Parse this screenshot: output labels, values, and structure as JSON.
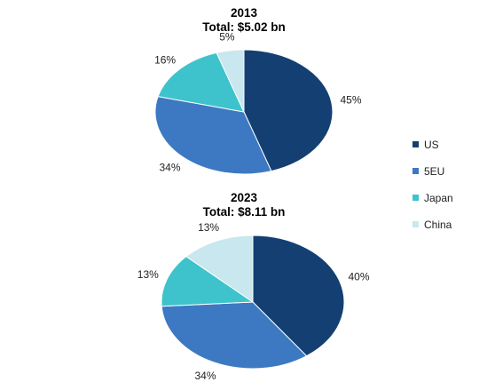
{
  "chart_data": [
    {
      "type": "pie",
      "title": "2013",
      "subtitle": "Total: $5.02 bn",
      "categories": [
        "US",
        "5EU",
        "Japan",
        "China"
      ],
      "values": [
        45,
        34,
        16,
        5
      ],
      "labels": [
        "45%",
        "34%",
        "16%",
        "5%"
      ]
    },
    {
      "type": "pie",
      "title": "2023",
      "subtitle": "Total: $8.11 bn",
      "categories": [
        "US",
        "5EU",
        "Japan",
        "China"
      ],
      "values": [
        40,
        34,
        13,
        13
      ],
      "labels": [
        "40%",
        "34%",
        "13%",
        "13%"
      ]
    }
  ],
  "legend": {
    "placement": "right",
    "items": [
      {
        "label": "US",
        "color": "#143f72"
      },
      {
        "label": "5EU",
        "color": "#3c79c2"
      },
      {
        "label": "Japan",
        "color": "#3ec3cd"
      },
      {
        "label": "China",
        "color": "#c8e7ef"
      }
    ]
  }
}
